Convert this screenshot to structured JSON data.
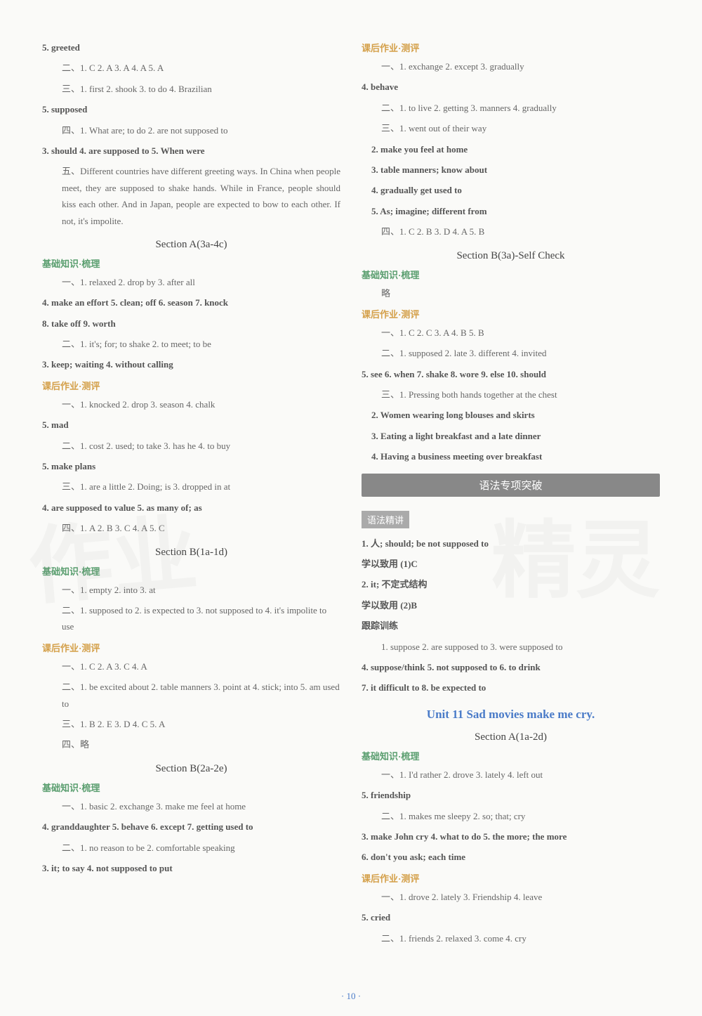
{
  "left": {
    "l5": "5. greeted",
    "l_a": "二、1. C   2. A   3. A   4. A   5. A",
    "l_b": "三、1. first   2. shook   3. to do   4. Brazilian",
    "l_c": "5. supposed",
    "l_d": "四、1. What are; to do   2. are not supposed to",
    "l_e": "3. should   4. are supposed to   5. When were",
    "l_f": "五、Different countries have different greeting ways. In China when people meet, they are supposed to shake hands. While in France, people should kiss each other. And in Japan, people are expected to bow to each other. If not, it's impolite.",
    "sec_a3a": "Section A(3a-4c)",
    "h_jichu1": "基础知识·梳理",
    "a1": "一、1. relaxed   2. drop by   3. after all",
    "a2": "4. make an effort   5. clean; off   6. season   7. knock",
    "a3": "8. take off   9. worth",
    "a4": "二、1. it's; for; to shake   2. to meet; to be",
    "a5": "3. keep; waiting   4. without calling",
    "h_kehou1": "课后作业·测评",
    "b1": "一、1. knocked   2. drop   3. season   4. chalk",
    "b2": "5. mad",
    "b3": "二、1. cost   2. used; to take   3. has he   4. to buy",
    "b4": "5. make plans",
    "b5": "三、1. are a little   2. Doing; is   3. dropped in at",
    "b6": "4. are supposed to value   5. as many of; as",
    "b7": "四、1. A   2. B   3. C   4. A   5. C",
    "sec_b1a": "Section B(1a-1d)",
    "h_jichu2": "基础知识·梳理",
    "c1": "一、1. empty   2. into   3. at",
    "c2": "二、1. supposed to   2. is expected to   3. not supposed to   4. it's impolite to use",
    "h_kehou2": "课后作业·测评",
    "d1": "一、1. C   2. A   3. C   4. A",
    "d2": "二、1. be excited about   2. table manners   3. point at   4. stick; into   5. am used to",
    "d3": "三、1. B   2. E   3. D   4. C   5. A",
    "d4": "四、略",
    "sec_b2a": "Section B(2a-2e)",
    "h_jichu3": "基础知识·梳理",
    "e1": "一、1. basic   2. exchange   3. make me feel at home",
    "e2": "4. granddaughter   5. behave   6. except   7. getting used to",
    "e3": "二、1. no reason to be   2. comfortable speaking",
    "e4": "3. it; to say   4. not supposed to put"
  },
  "right": {
    "h_kehou3": "课后作业·测评",
    "f1": "一、1. exchange   2. except   3. gradually",
    "f2": "4. behave",
    "f3": "二、1. to live   2. getting   3. manners   4. gradually",
    "f4": "三、1. went out of their way",
    "f5": "2. make you feel at home",
    "f6": "3. table manners; know about",
    "f7": "4. gradually get used to",
    "f8": "5. As; imagine; different from",
    "f9": "四、1. C   2. B   3. D   4. A   5. B",
    "sec_b3a": "Section B(3a)-Self Check",
    "h_jichu4": "基础知识·梳理",
    "g1": "略",
    "h_kehou4": "课后作业·测评",
    "h1": "一、1. C   2. C   3. A   4. B   5. B",
    "h2": "二、1. supposed   2. late   3. different   4. invited",
    "h3": "5. see   6. when   7. shake   8. wore   9. else   10. should",
    "h4": "三、1. Pressing both hands together at the chest",
    "h5": "2. Women wearing long blouses and skirts",
    "h6": "3. Eating a light breakfast and a late dinner",
    "h7": "4. Having a business meeting over breakfast",
    "banner_yufa": "语法专项突破",
    "sub_jingjiang": "语法精讲",
    "i1": "1. 人; should; be not supposed to",
    "i2": "学以致用   (1)C",
    "i3": "2. it; 不定式结构",
    "i4": "学以致用   (2)B",
    "sub_genzong": "跟踪训练",
    "j1": "1. suppose   2. are supposed to   3. were supposed to",
    "j2": "4. suppose/think   5. not supposed to   6. to drink",
    "j3": "7. it difficult to   8. be expected to",
    "unit11": "Unit 11   Sad movies make me cry.",
    "sec_a1a": "Section A(1a-2d)",
    "h_jichu5": "基础知识·梳理",
    "k1": "一、1. I'd rather   2. drove   3. lately   4. left out",
    "k2": "5. friendship",
    "k3": "二、1. makes me sleepy   2. so; that; cry",
    "k4": "3. make John cry   4. what to do   5. the more; the more",
    "k5": "6. don't you ask; each time",
    "h_kehou5": "课后作业·测评",
    "m1": "一、1. drove   2. lately   3. Friendship   4. leave",
    "m2": "5. cried",
    "m3": "二、1. friends   2. relaxed   3. come   4. cry"
  },
  "page": "· 10 ·"
}
